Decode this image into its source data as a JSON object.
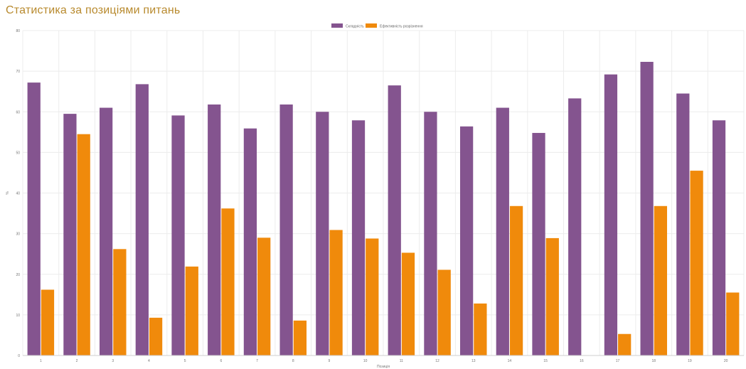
{
  "page": {
    "title": "Статистика за позиціями питань"
  },
  "chart_data": {
    "type": "bar",
    "title": "",
    "xlabel": "Позиція",
    "ylabel": "%",
    "ylim": [
      0,
      80
    ],
    "yticks": [
      0,
      10,
      20,
      30,
      40,
      50,
      60,
      70,
      80
    ],
    "grid": true,
    "legend_position": "top-center",
    "categories": [
      "1",
      "2",
      "3",
      "4",
      "5",
      "6",
      "7",
      "8",
      "9",
      "10",
      "11",
      "12",
      "13",
      "14",
      "15",
      "16",
      "17",
      "18",
      "19",
      "20"
    ],
    "series": [
      {
        "name": "Складність",
        "color": "#84548f",
        "values": [
          67.2,
          59.5,
          61.0,
          66.8,
          59.1,
          61.8,
          55.9,
          61.8,
          60.0,
          57.9,
          66.5,
          60.0,
          56.4,
          61.0,
          54.8,
          63.3,
          69.2,
          72.3,
          64.5,
          57.9
        ]
      },
      {
        "name": "Ефективність розрізнення",
        "color": "#f08a0b",
        "values": [
          16.2,
          54.5,
          26.2,
          9.3,
          21.9,
          36.2,
          29.0,
          8.6,
          30.9,
          28.8,
          25.3,
          21.1,
          12.8,
          36.8,
          28.9,
          0,
          5.3,
          36.8,
          45.5,
          15.5
        ]
      }
    ]
  }
}
